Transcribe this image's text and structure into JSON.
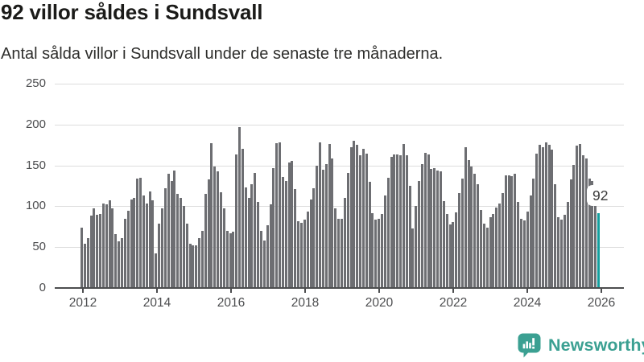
{
  "header": {
    "title": "92 villor såldes i Sundsvall",
    "subtitle": "Antal sålda villor i Sundsvall under de senaste tre månaderna."
  },
  "chart_data": {
    "type": "bar",
    "title": "92 villor såldes i Sundsvall",
    "frequency": "monthly",
    "start_year": 2012,
    "start_month": 1,
    "values": [
      74,
      54,
      61,
      89,
      97,
      90,
      91,
      103,
      102,
      107,
      97,
      66,
      57,
      61,
      85,
      95,
      108,
      110,
      134,
      135,
      113,
      103,
      118,
      107,
      42,
      79,
      97,
      122,
      140,
      131,
      144,
      115,
      110,
      100,
      79,
      54,
      52,
      52,
      61,
      70,
      115,
      133,
      177,
      149,
      143,
      117,
      97,
      70,
      67,
      69,
      163,
      197,
      170,
      123,
      110,
      127,
      141,
      105,
      70,
      58,
      77,
      102,
      147,
      177,
      178,
      136,
      131,
      154,
      156,
      121,
      82,
      80,
      84,
      94,
      108,
      122,
      150,
      178,
      145,
      152,
      176,
      159,
      97,
      85,
      85,
      110,
      141,
      172,
      180,
      175,
      162,
      170,
      164,
      130,
      92,
      84,
      85,
      91,
      113,
      135,
      160,
      163,
      163,
      162,
      176,
      162,
      125,
      73,
      100,
      131,
      152,
      165,
      163,
      146,
      147,
      144,
      143,
      106,
      91,
      78,
      81,
      93,
      116,
      134,
      172,
      157,
      149,
      140,
      127,
      96,
      79,
      74,
      87,
      91,
      98,
      103,
      116,
      138,
      138,
      137,
      140,
      105,
      85,
      83,
      94,
      113,
      134,
      164,
      175,
      172,
      178,
      175,
      169,
      127,
      87,
      84,
      90,
      105,
      133,
      151,
      174,
      176,
      162,
      159,
      134,
      131,
      110,
      92
    ],
    "highlight": {
      "index": 167,
      "label": "92",
      "color": "#149e9e"
    },
    "bar_color": "#6d6e72",
    "ylim": [
      0,
      250
    ],
    "yticks": [
      0,
      50,
      100,
      150,
      200,
      250
    ],
    "xticks": [
      2012,
      2014,
      2016,
      2018,
      2020,
      2022,
      2024,
      2026
    ],
    "grid": true,
    "legend": "none",
    "xlabel": "",
    "ylabel": ""
  },
  "footer": {
    "brand": "Newsworthy",
    "logo_icon": "newsworthy-speech-bubble-barchart-icon",
    "brand_color": "#3ba092"
  },
  "colors": {
    "bar": "#6d6e72",
    "highlight": "#149e9e",
    "brand": "#3ba092",
    "axis": "#4c4d4f",
    "gridline": "#dcdcdc",
    "title_text": "#1b1b19",
    "subtitle_text": "#2e2e2c"
  }
}
